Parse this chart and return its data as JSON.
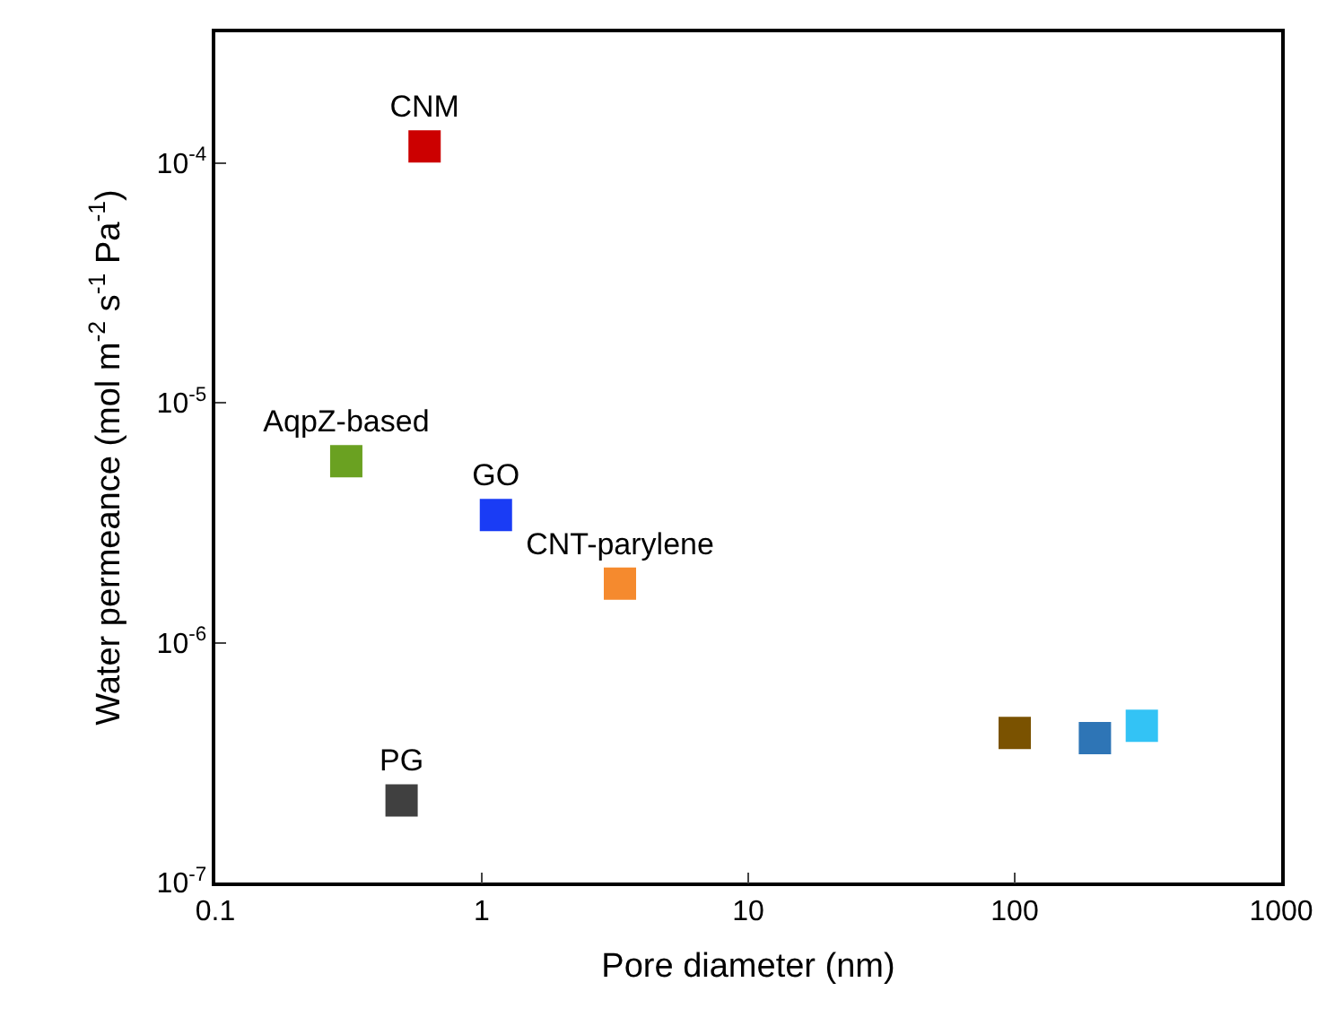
{
  "chart_data": {
    "type": "scatter",
    "xlabel": "Pore diameter (nm)",
    "ylabel": "Water permeance (mol m$^{-2}$ s$^{-1}$ Pa$^{-1}$)",
    "log": "xy",
    "xlim": [
      0.1,
      1000
    ],
    "xticks": [
      0.1,
      1,
      10,
      100,
      1000
    ],
    "ylim": [
      1e-07,
      0.00035
    ],
    "yticks": [
      {
        "value": 1e-07,
        "label": "10$^{-7}$"
      },
      {
        "value": 1e-06,
        "label": "10$^{-6}$"
      },
      {
        "value": 1e-05,
        "label": "10$^{-5}$"
      },
      {
        "value": 0.0001,
        "label": "10$^{-4}$"
      }
    ],
    "marker": "square",
    "series": [
      {
        "name": "CNM",
        "color": "#cc0000",
        "x": [
          0.61
        ],
        "values": [
          0.000117
        ]
      },
      {
        "name": "AqpZ-based",
        "color": "#6aa121",
        "x": [
          0.31
        ],
        "values": [
          5.7e-06
        ]
      },
      {
        "name": "GO",
        "color": "#1a3cf5",
        "x": [
          1.13
        ],
        "values": [
          3.4e-06
        ]
      },
      {
        "name": "CNT-parylene",
        "color": "#f58a2e",
        "x": [
          3.3
        ],
        "values": [
          1.76e-06
        ]
      },
      {
        "name": "PG",
        "color": "#404040",
        "x": [
          0.5
        ],
        "values": [
          2.2e-07
        ]
      },
      {
        "color": "#7a5200",
        "x": [
          100
        ],
        "values": [
          4.2e-07
        ]
      },
      {
        "color": "#2e75b6",
        "x": [
          200
        ],
        "values": [
          4e-07
        ]
      },
      {
        "color": "#33c3f5",
        "x": [
          300
        ],
        "values": [
          4.5e-07
        ]
      }
    ]
  }
}
